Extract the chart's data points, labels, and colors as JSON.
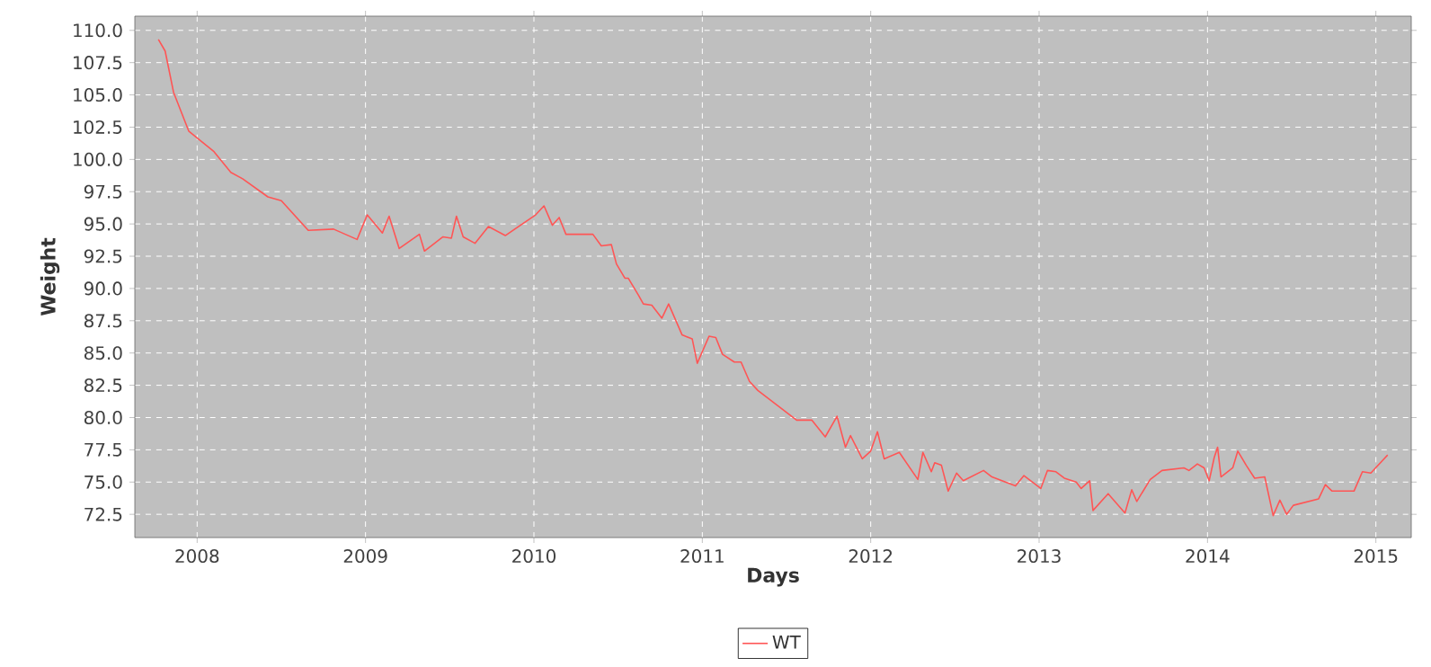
{
  "chart_data": {
    "type": "line",
    "xlabel": "Days",
    "ylabel": "Weight",
    "xlim": [
      2007.63,
      2015.21
    ],
    "ylim": [
      70.7,
      111.1
    ],
    "xticks": [
      2008,
      2009,
      2010,
      2011,
      2012,
      2013,
      2014,
      2015
    ],
    "yticks": [
      {
        "value": 72.5,
        "label": "72.5"
      },
      {
        "value": 75,
        "label": "75.0"
      },
      {
        "value": 77.5,
        "label": "77.5"
      },
      {
        "value": 80,
        "label": "80.0"
      },
      {
        "value": 82.5,
        "label": "82.5"
      },
      {
        "value": 85,
        "label": "85.0"
      },
      {
        "value": 87.5,
        "label": "87.5"
      },
      {
        "value": 90,
        "label": "90.0"
      },
      {
        "value": 92.5,
        "label": "92.5"
      },
      {
        "value": 95,
        "label": "95.0"
      },
      {
        "value": 97.5,
        "label": "97.5"
      },
      {
        "value": 100,
        "label": "100.0"
      },
      {
        "value": 102.5,
        "label": "102.5"
      },
      {
        "value": 105,
        "label": "105.0"
      },
      {
        "value": 107.5,
        "label": "107.5"
      },
      {
        "value": 110,
        "label": "110.0"
      }
    ],
    "grid": true,
    "legend": "bottom",
    "marker": "none",
    "line_style": "solid",
    "x": [
      2007.77,
      2007.81,
      2007.86,
      2007.95,
      2008.1,
      2008.2,
      2008.27,
      2008.42,
      2008.5,
      2008.66,
      2008.81,
      2008.95,
      2009.01,
      2009.1,
      2009.14,
      2009.2,
      2009.32,
      2009.35,
      2009.46,
      2009.51,
      2009.54,
      2009.58,
      2009.65,
      2009.73,
      2009.83,
      2010.01,
      2010.06,
      2010.11,
      2010.15,
      2010.19,
      2010.35,
      2010.4,
      2010.46,
      2010.49,
      2010.54,
      2010.56,
      2010.62,
      2010.65,
      2010.7,
      2010.76,
      2010.8,
      2010.88,
      2010.94,
      2010.97,
      2011.04,
      2011.08,
      2011.12,
      2011.19,
      2011.23,
      2011.28,
      2011.33,
      2011.56,
      2011.65,
      2011.73,
      2011.8,
      2011.85,
      2011.88,
      2011.95,
      2012.0,
      2012.04,
      2012.08,
      2012.17,
      2012.28,
      2012.31,
      2012.36,
      2012.38,
      2012.42,
      2012.46,
      2012.51,
      2012.55,
      2012.67,
      2012.72,
      2012.86,
      2012.91,
      2013.01,
      2013.05,
      2013.1,
      2013.15,
      2013.22,
      2013.25,
      2013.3,
      2013.32,
      2013.41,
      2013.51,
      2013.55,
      2013.58,
      2013.66,
      2013.73,
      2013.86,
      2013.89,
      2013.94,
      2013.98,
      2014.01,
      2014.04,
      2014.06,
      2014.08,
      2014.15,
      2014.18,
      2014.23,
      2014.28,
      2014.34,
      2014.39,
      2014.43,
      2014.47,
      2014.51,
      2014.66,
      2014.7,
      2014.74,
      2014.87,
      2014.92,
      2014.97,
      2015.07
    ],
    "series": [
      {
        "name": "WT",
        "color": "#ff5555",
        "values": [
          109.3,
          108.4,
          105.2,
          102.2,
          100.6,
          99.0,
          98.5,
          97.1,
          96.8,
          94.5,
          94.6,
          93.8,
          95.7,
          94.3,
          95.6,
          93.1,
          94.2,
          92.9,
          94.0,
          93.9,
          95.6,
          94.0,
          93.5,
          94.8,
          94.1,
          95.7,
          96.4,
          94.9,
          95.5,
          94.2,
          94.2,
          93.3,
          93.4,
          91.9,
          90.8,
          90.8,
          89.5,
          88.8,
          88.7,
          87.7,
          88.8,
          86.4,
          86.1,
          84.2,
          86.3,
          86.2,
          84.9,
          84.3,
          84.3,
          82.8,
          82.1,
          79.8,
          79.8,
          78.5,
          80.1,
          77.7,
          78.6,
          76.8,
          77.4,
          78.9,
          76.8,
          77.3,
          75.2,
          77.3,
          75.8,
          76.5,
          76.3,
          74.3,
          75.7,
          75.1,
          75.9,
          75.4,
          74.7,
          75.5,
          74.5,
          75.9,
          75.8,
          75.3,
          75.0,
          74.5,
          75.1,
          72.8,
          74.1,
          72.6,
          74.4,
          73.5,
          75.2,
          75.9,
          76.1,
          75.9,
          76.4,
          76.1,
          75.1,
          76.9,
          77.7,
          75.4,
          76.1,
          77.4,
          76.3,
          75.3,
          75.4,
          72.4,
          73.6,
          72.5,
          73.2,
          73.7,
          74.8,
          74.3,
          74.3,
          75.8,
          75.7,
          77.1
        ]
      }
    ]
  }
}
